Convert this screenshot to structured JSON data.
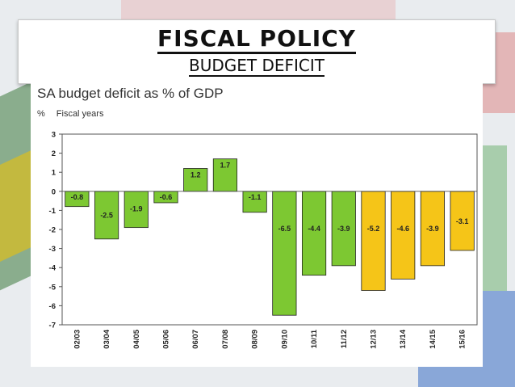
{
  "slide": {
    "title": "FISCAL POLICY",
    "subtitle": "BUDGET DEFICIT"
  },
  "chart_data": {
    "type": "bar",
    "title": "SA budget deficit as % of GDP",
    "ylabel": "%",
    "xlabel": "Fiscal years",
    "ylim": [
      -7,
      3
    ],
    "yticks": [
      3,
      2,
      1,
      0,
      -1,
      -2,
      -3,
      -4,
      -5,
      -6,
      -7
    ],
    "grid": false,
    "categories": [
      "02/03",
      "03/04",
      "04/05",
      "05/06",
      "06/07",
      "07/08",
      "08/09",
      "09/10",
      "10/11",
      "11/12",
      "12/13",
      "13/14",
      "14/15",
      "15/16"
    ],
    "values": [
      -0.8,
      -2.5,
      -1.9,
      -0.6,
      1.2,
      1.7,
      -1.1,
      -6.5,
      -4.4,
      -3.9,
      -5.2,
      -4.6,
      -3.9,
      -3.1
    ],
    "data_labels": [
      "-0.8",
      "-2.5",
      "-1.9",
      "-0.6",
      "1.2",
      "1.7",
      "-1.1",
      "-6.5",
      "-4.4",
      "-3.9",
      "-5.2",
      "-4.6",
      "-3.9",
      "-3.1"
    ],
    "bar_colors": [
      "#7dc832",
      "#7dc832",
      "#7dc832",
      "#7dc832",
      "#7dc832",
      "#7dc832",
      "#7dc832",
      "#7dc832",
      "#7dc832",
      "#7dc832",
      "#f5c518",
      "#f5c518",
      "#f5c518",
      "#f5c518"
    ]
  }
}
